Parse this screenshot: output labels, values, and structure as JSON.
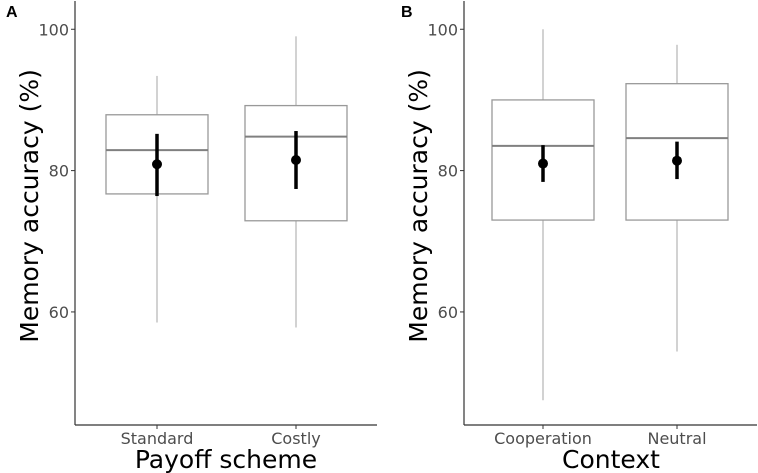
{
  "chart_data": [
    {
      "type": "box",
      "panel_label": "A",
      "xlabel": "Payoff scheme",
      "ylabel": "Memory accuracy (%)",
      "ylim": [
        44,
        104
      ],
      "yticks": [
        60,
        80,
        100
      ],
      "grid": false,
      "categories": [
        {
          "label": "Standard",
          "whisker_low": 58.5,
          "q1": 76.7,
          "median": 82.9,
          "q3": 87.9,
          "whisker_high": 93.4,
          "mean": 80.9,
          "ci_low": 76.4,
          "ci_high": 85.2
        },
        {
          "label": "Costly",
          "whisker_low": 57.8,
          "q1": 72.9,
          "median": 84.8,
          "q3": 89.2,
          "whisker_high": 99.0,
          "mean": 81.5,
          "ci_low": 77.4,
          "ci_high": 85.6
        }
      ]
    },
    {
      "type": "box",
      "panel_label": "B",
      "xlabel": "Context",
      "ylabel": "Memory accuracy (%)",
      "ylim": [
        44,
        104
      ],
      "yticks": [
        60,
        80,
        100
      ],
      "grid": false,
      "categories": [
        {
          "label": "Cooperation",
          "whisker_low": 47.5,
          "q1": 73.0,
          "median": 83.5,
          "q3": 90.0,
          "whisker_high": 100.0,
          "mean": 81.0,
          "ci_low": 78.4,
          "ci_high": 83.6
        },
        {
          "label": "Neutral",
          "whisker_low": 54.4,
          "q1": 73.0,
          "median": 84.6,
          "q3": 92.3,
          "whisker_high": 97.8,
          "mean": 81.4,
          "ci_low": 78.8,
          "ci_high": 84.1
        }
      ]
    }
  ]
}
